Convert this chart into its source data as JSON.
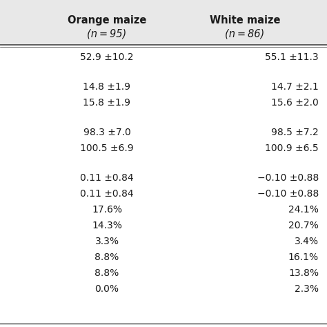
{
  "col1_header_line1": "Orange maize",
  "col1_header_line2": "(n = 95)",
  "col2_header_line1": "White maize",
  "col2_header_line2": "(n = 86)",
  "col1_values": [
    "52.9 ±10.2",
    "",
    "14.8 ±1.9",
    "15.8 ±1.9",
    "",
    "98.3 ±7.0",
    "100.5 ±6.9",
    "",
    "0.11 ±0.84",
    "0.11 ±0.84",
    "17.6%",
    "14.3%",
    "3.3%",
    "8.8%",
    "8.8%",
    "0.0%"
  ],
  "col2_values": [
    "55.1 ±11.3",
    "",
    "14.7 ±2.1",
    "15.6 ±2.0",
    "",
    "98.5 ±7.2",
    "100.9 ±6.5",
    "",
    "−0.10 ±0.88",
    "−0.10 ±0.88",
    "24.1%",
    "20.7%",
    "3.4%",
    "16.1%",
    "13.8%",
    "2.3%"
  ],
  "header_bg": "#e8e8e8",
  "body_bg": "#ffffff",
  "text_color": "#1a1a1a",
  "header_fontsize": 10.5,
  "body_fontsize": 10,
  "fig_width": 4.74,
  "fig_height": 4.74,
  "dpi": 100
}
